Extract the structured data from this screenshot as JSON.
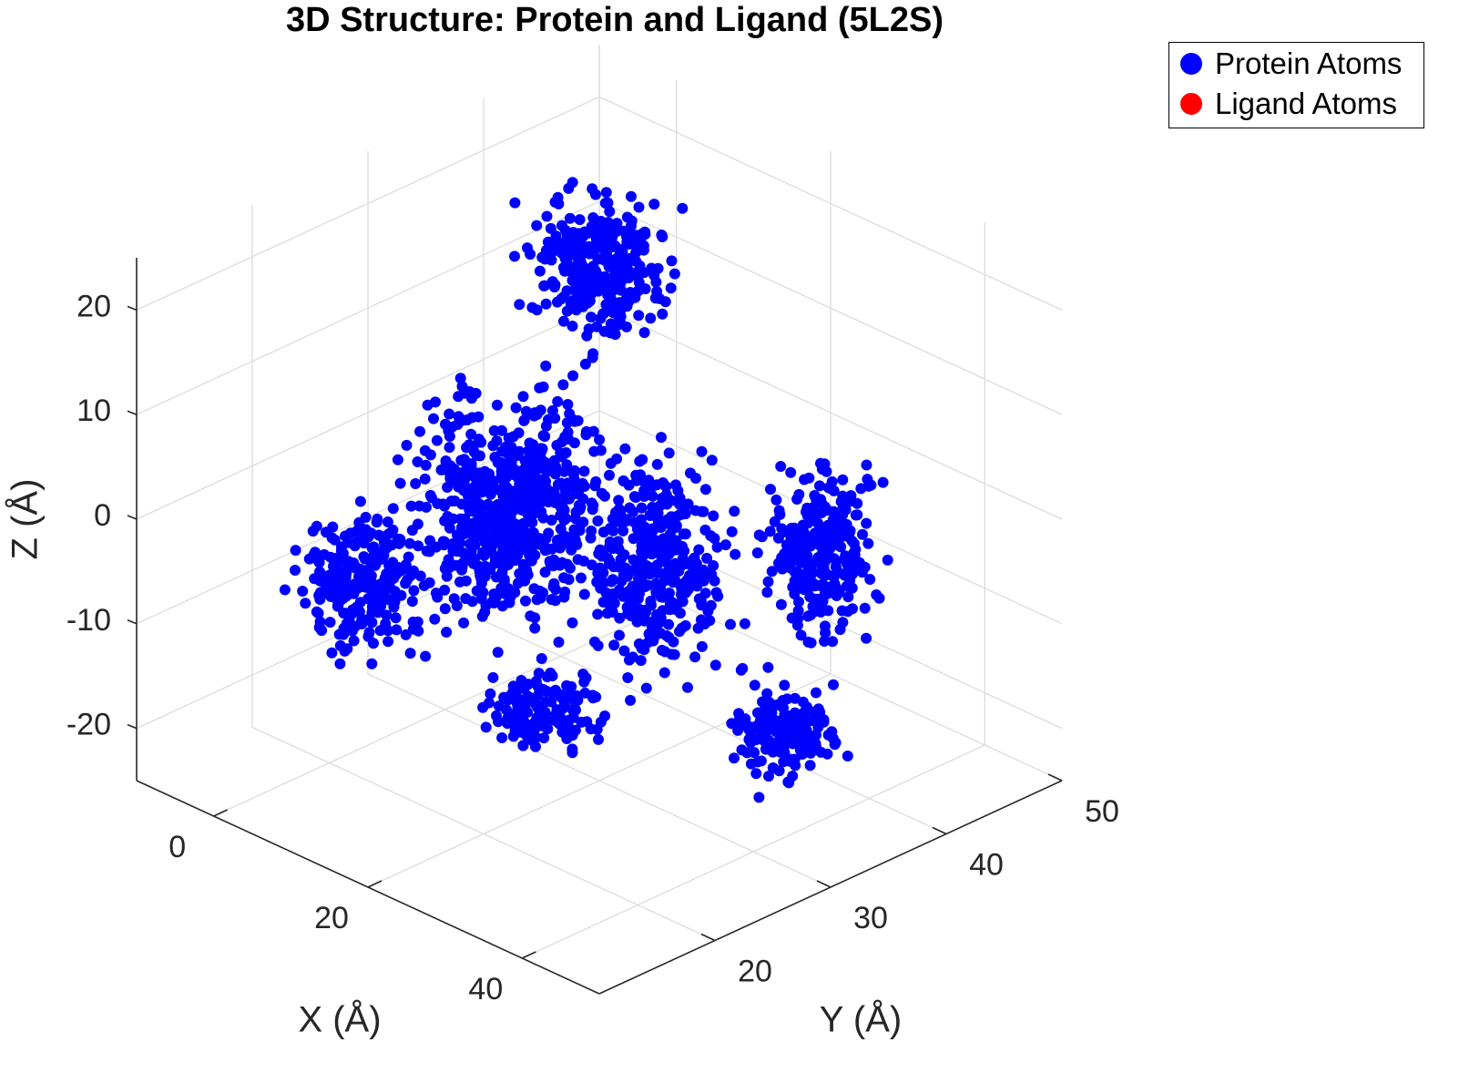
{
  "chart_data": {
    "type": "scatter",
    "title": "3D Structure: Protein and Ligand (5L2S)",
    "xlabel": "X (Å)",
    "ylabel": "Y (Å)",
    "zlabel": "Z (Å)",
    "xlim": [
      -10,
      50
    ],
    "ylim": [
      10,
      50
    ],
    "zlim": [
      -25,
      25
    ],
    "x_ticks": [
      "0",
      "20",
      "40"
    ],
    "y_ticks": [
      "20",
      "30",
      "40",
      "50"
    ],
    "z_ticks": [
      "20",
      "10",
      "0",
      "-10",
      "-20"
    ],
    "grid": true,
    "legend_position": "top-right, outside",
    "series": [
      {
        "name": "Protein Atoms",
        "color": "#0000ff",
        "marker": "filled-circle",
        "approx_count": 2100,
        "cluster_centroids": [
          {
            "x": 12,
            "y": 22,
            "z": 0
          },
          {
            "x": 20,
            "y": 30,
            "z": 5
          },
          {
            "x": 28,
            "y": 38,
            "z": -8
          },
          {
            "x": 10,
            "y": 38,
            "z": 18
          },
          {
            "x": 5,
            "y": 45,
            "z": 10
          },
          {
            "x": 35,
            "y": 32,
            "z": -15
          }
        ]
      },
      {
        "name": "Ligand Atoms",
        "color": "#ff0000",
        "marker": "filled-circle",
        "approx_count": 0
      }
    ]
  }
}
